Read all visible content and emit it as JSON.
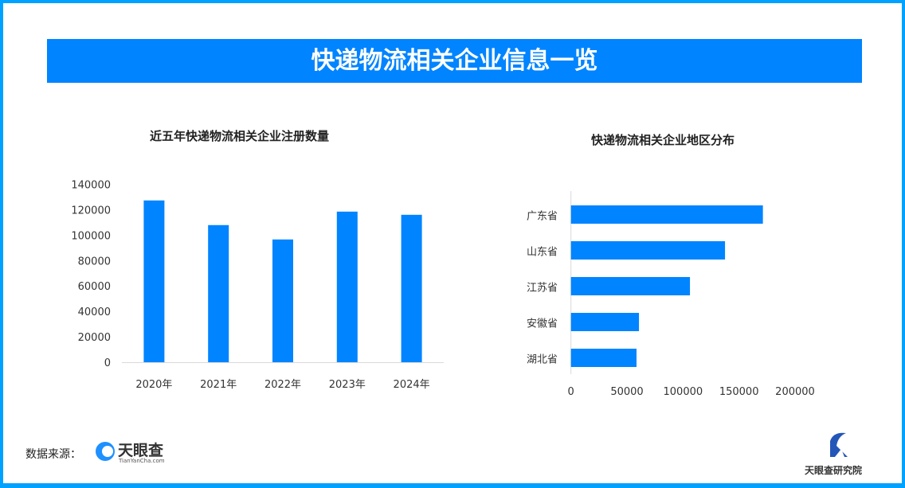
{
  "banner_title": "快递物流相关企业信息一览",
  "colors": {
    "bar": "#0084ff",
    "banner": "#0084ff",
    "frame": "#00a2ff"
  },
  "chart_data": [
    {
      "type": "bar",
      "title": "近五年快递物流相关企业注册数量",
      "categories": [
        "2020年",
        "2021年",
        "2022年",
        "2023年",
        "2024年"
      ],
      "values": [
        127300,
        107900,
        96600,
        118500,
        116000
      ],
      "ylim": [
        0,
        140000
      ],
      "yticks": [
        "0",
        "20000",
        "40000",
        "60000",
        "80000",
        "100000",
        "120000",
        "140000"
      ],
      "grid": false,
      "legend": "none"
    },
    {
      "type": "bar",
      "orientation": "horizontal",
      "title": "快递物流相关企业地区分布",
      "categories": [
        "广东省",
        "山东省",
        "江苏省",
        "安徽省",
        "湖北省"
      ],
      "values": [
        171300,
        137500,
        106200,
        60700,
        58500
      ],
      "xlim": [
        0,
        200000
      ],
      "xticks": [
        "0",
        "50000",
        "100000",
        "150000",
        "200000"
      ],
      "grid": false,
      "legend": "none"
    }
  ],
  "footer": {
    "source_label": "数据来源：",
    "source_logo": "天眼查",
    "source_logo_url_text": "TianYanCha.com",
    "institute_logo": "天眼查研究院"
  }
}
